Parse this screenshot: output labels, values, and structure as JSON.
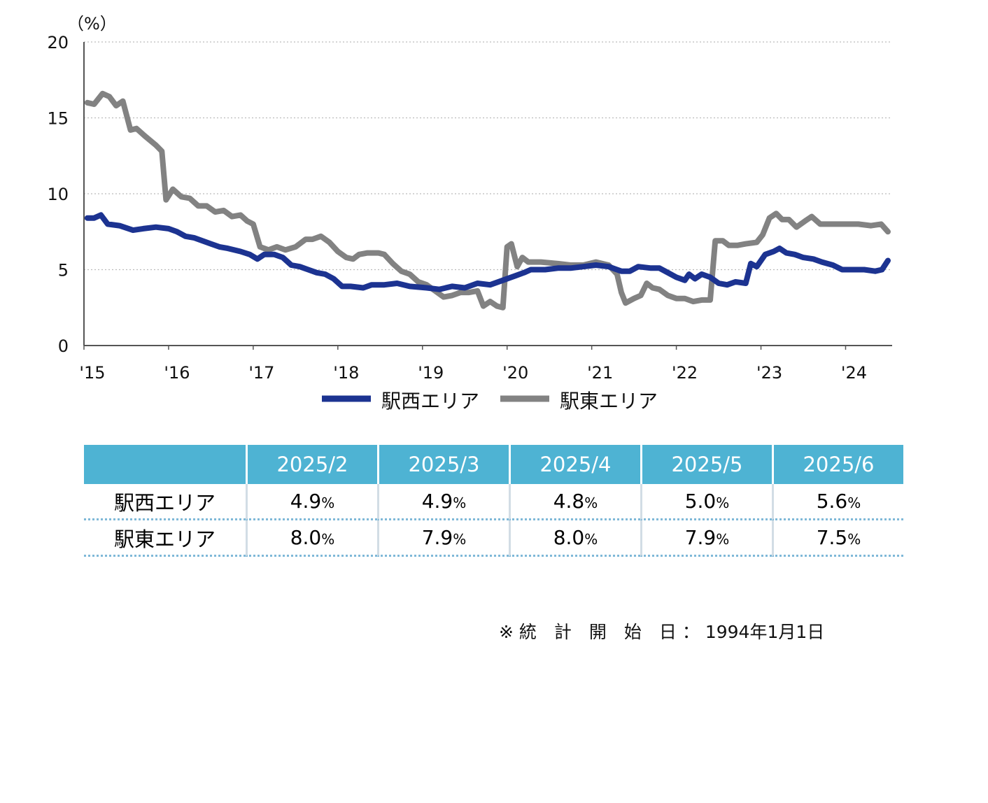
{
  "chart_data": {
    "type": "line",
    "y_unit_label": "（%）",
    "ylim": [
      0,
      20
    ],
    "yticks": [
      0,
      5,
      10,
      15,
      20
    ],
    "xlim": [
      2015.0,
      2024.55
    ],
    "xticks": [
      {
        "value": 2015,
        "label": "'15"
      },
      {
        "value": 2016,
        "label": "'16"
      },
      {
        "value": 2017,
        "label": "'17"
      },
      {
        "value": 2018,
        "label": "'18"
      },
      {
        "value": 2019,
        "label": "'19"
      },
      {
        "value": 2020,
        "label": "'20"
      },
      {
        "value": 2021,
        "label": "'21"
      },
      {
        "value": 2022,
        "label": "'22"
      },
      {
        "value": 2023,
        "label": "'23"
      },
      {
        "value": 2024,
        "label": "'24"
      }
    ],
    "grid": "horizontal dotted",
    "legend_position": "bottom-center",
    "series": [
      {
        "name": "駅西エリア",
        "color": "#1c3391",
        "points": [
          [
            2015.04,
            8.4
          ],
          [
            2015.12,
            8.4
          ],
          [
            2015.2,
            8.6
          ],
          [
            2015.28,
            8.0
          ],
          [
            2015.42,
            7.9
          ],
          [
            2015.58,
            7.6
          ],
          [
            2015.7,
            7.7
          ],
          [
            2015.85,
            7.8
          ],
          [
            2016.0,
            7.7
          ],
          [
            2016.1,
            7.5
          ],
          [
            2016.2,
            7.2
          ],
          [
            2016.3,
            7.1
          ],
          [
            2016.4,
            6.9
          ],
          [
            2016.5,
            6.7
          ],
          [
            2016.6,
            6.5
          ],
          [
            2016.7,
            6.4
          ],
          [
            2016.85,
            6.2
          ],
          [
            2016.96,
            6.0
          ],
          [
            2017.05,
            5.7
          ],
          [
            2017.13,
            6.0
          ],
          [
            2017.25,
            6.0
          ],
          [
            2017.35,
            5.8
          ],
          [
            2017.45,
            5.3
          ],
          [
            2017.55,
            5.2
          ],
          [
            2017.65,
            5.0
          ],
          [
            2017.75,
            4.8
          ],
          [
            2017.85,
            4.7
          ],
          [
            2017.95,
            4.4
          ],
          [
            2018.05,
            3.9
          ],
          [
            2018.15,
            3.9
          ],
          [
            2018.3,
            3.8
          ],
          [
            2018.4,
            4.0
          ],
          [
            2018.55,
            4.0
          ],
          [
            2018.7,
            4.1
          ],
          [
            2018.85,
            3.9
          ],
          [
            2019.05,
            3.8
          ],
          [
            2019.2,
            3.7
          ],
          [
            2019.35,
            3.9
          ],
          [
            2019.5,
            3.8
          ],
          [
            2019.65,
            4.1
          ],
          [
            2019.8,
            4.0
          ],
          [
            2019.95,
            4.3
          ],
          [
            2020.1,
            4.6
          ],
          [
            2020.2,
            4.8
          ],
          [
            2020.28,
            5.0
          ],
          [
            2020.45,
            5.0
          ],
          [
            2020.6,
            5.1
          ],
          [
            2020.75,
            5.1
          ],
          [
            2020.9,
            5.2
          ],
          [
            2021.05,
            5.3
          ],
          [
            2021.2,
            5.2
          ],
          [
            2021.35,
            4.9
          ],
          [
            2021.45,
            4.9
          ],
          [
            2021.55,
            5.2
          ],
          [
            2021.7,
            5.1
          ],
          [
            2021.8,
            5.1
          ],
          [
            2021.9,
            4.8
          ],
          [
            2022.0,
            4.5
          ],
          [
            2022.1,
            4.3
          ],
          [
            2022.15,
            4.7
          ],
          [
            2022.22,
            4.4
          ],
          [
            2022.3,
            4.7
          ],
          [
            2022.4,
            4.5
          ],
          [
            2022.5,
            4.1
          ],
          [
            2022.6,
            4.0
          ],
          [
            2022.7,
            4.2
          ],
          [
            2022.82,
            4.1
          ],
          [
            2022.88,
            5.4
          ],
          [
            2022.95,
            5.2
          ],
          [
            2023.05,
            6.0
          ],
          [
            2023.15,
            6.2
          ],
          [
            2023.22,
            6.4
          ],
          [
            2023.3,
            6.1
          ],
          [
            2023.4,
            6.0
          ],
          [
            2023.5,
            5.8
          ],
          [
            2023.62,
            5.7
          ],
          [
            2023.72,
            5.5
          ],
          [
            2023.85,
            5.3
          ],
          [
            2023.96,
            5.0
          ],
          [
            2024.1,
            5.0
          ],
          [
            2024.22,
            5.0
          ],
          [
            2024.35,
            4.9
          ],
          [
            2024.43,
            5.0
          ],
          [
            2024.5,
            5.6
          ]
        ]
      },
      {
        "name": "駅東エリア",
        "color": "#828282",
        "points": [
          [
            2015.04,
            16.0
          ],
          [
            2015.12,
            15.9
          ],
          [
            2015.22,
            16.6
          ],
          [
            2015.3,
            16.4
          ],
          [
            2015.38,
            15.8
          ],
          [
            2015.46,
            16.1
          ],
          [
            2015.55,
            14.2
          ],
          [
            2015.62,
            14.3
          ],
          [
            2015.72,
            13.8
          ],
          [
            2015.85,
            13.2
          ],
          [
            2015.92,
            12.8
          ],
          [
            2015.97,
            9.6
          ],
          [
            2016.05,
            10.3
          ],
          [
            2016.15,
            9.8
          ],
          [
            2016.25,
            9.7
          ],
          [
            2016.35,
            9.2
          ],
          [
            2016.45,
            9.2
          ],
          [
            2016.55,
            8.8
          ],
          [
            2016.65,
            8.9
          ],
          [
            2016.75,
            8.5
          ],
          [
            2016.85,
            8.6
          ],
          [
            2016.93,
            8.2
          ],
          [
            2017.0,
            8.0
          ],
          [
            2017.08,
            6.5
          ],
          [
            2017.18,
            6.3
          ],
          [
            2017.28,
            6.5
          ],
          [
            2017.38,
            6.3
          ],
          [
            2017.5,
            6.5
          ],
          [
            2017.62,
            7.0
          ],
          [
            2017.7,
            7.0
          ],
          [
            2017.8,
            7.2
          ],
          [
            2017.9,
            6.8
          ],
          [
            2018.0,
            6.2
          ],
          [
            2018.1,
            5.8
          ],
          [
            2018.18,
            5.7
          ],
          [
            2018.25,
            6.0
          ],
          [
            2018.35,
            6.1
          ],
          [
            2018.48,
            6.1
          ],
          [
            2018.55,
            6.0
          ],
          [
            2018.65,
            5.4
          ],
          [
            2018.75,
            4.9
          ],
          [
            2018.85,
            4.7
          ],
          [
            2018.95,
            4.2
          ],
          [
            2019.05,
            4.0
          ],
          [
            2019.15,
            3.6
          ],
          [
            2019.25,
            3.2
          ],
          [
            2019.35,
            3.3
          ],
          [
            2019.45,
            3.5
          ],
          [
            2019.55,
            3.5
          ],
          [
            2019.65,
            3.6
          ],
          [
            2019.72,
            2.6
          ],
          [
            2019.8,
            2.9
          ],
          [
            2019.88,
            2.6
          ],
          [
            2019.95,
            2.5
          ],
          [
            2020.0,
            6.5
          ],
          [
            2020.05,
            6.7
          ],
          [
            2020.12,
            5.2
          ],
          [
            2020.18,
            5.8
          ],
          [
            2020.25,
            5.5
          ],
          [
            2020.4,
            5.5
          ],
          [
            2020.6,
            5.4
          ],
          [
            2020.75,
            5.3
          ],
          [
            2020.9,
            5.3
          ],
          [
            2021.05,
            5.5
          ],
          [
            2021.2,
            5.3
          ],
          [
            2021.3,
            4.7
          ],
          [
            2021.35,
            3.5
          ],
          [
            2021.4,
            2.8
          ],
          [
            2021.5,
            3.1
          ],
          [
            2021.58,
            3.3
          ],
          [
            2021.65,
            4.1
          ],
          [
            2021.72,
            3.8
          ],
          [
            2021.8,
            3.7
          ],
          [
            2021.9,
            3.3
          ],
          [
            2022.0,
            3.1
          ],
          [
            2022.1,
            3.1
          ],
          [
            2022.2,
            2.9
          ],
          [
            2022.3,
            3.0
          ],
          [
            2022.4,
            3.0
          ],
          [
            2022.46,
            6.9
          ],
          [
            2022.55,
            6.9
          ],
          [
            2022.62,
            6.6
          ],
          [
            2022.72,
            6.6
          ],
          [
            2022.82,
            6.7
          ],
          [
            2022.95,
            6.8
          ],
          [
            2023.02,
            7.3
          ],
          [
            2023.1,
            8.4
          ],
          [
            2023.18,
            8.7
          ],
          [
            2023.25,
            8.3
          ],
          [
            2023.33,
            8.3
          ],
          [
            2023.42,
            7.8
          ],
          [
            2023.52,
            8.2
          ],
          [
            2023.6,
            8.5
          ],
          [
            2023.7,
            8.0
          ],
          [
            2023.85,
            8.0
          ],
          [
            2024.0,
            8.0
          ],
          [
            2024.15,
            8.0
          ],
          [
            2024.3,
            7.9
          ],
          [
            2024.42,
            8.0
          ],
          [
            2024.5,
            7.5
          ]
        ]
      }
    ]
  },
  "table": {
    "columns": [
      "2025/2",
      "2025/3",
      "2025/4",
      "2025/5",
      "2025/6"
    ],
    "rows": [
      {
        "label": "駅西エリア",
        "values": [
          "4.9",
          "4.9",
          "4.8",
          "5.0",
          "5.6"
        ],
        "unit": "%"
      },
      {
        "label": "駅東エリア",
        "values": [
          "8.0",
          "7.9",
          "8.0",
          "7.9",
          "7.5"
        ],
        "unit": "%"
      }
    ]
  },
  "footnote": {
    "label": "※ 統　計　開　始　日",
    "separator": "：",
    "value": "1994年1月1日"
  },
  "colors": {
    "table_header": "#4eb3d3",
    "series_west": "#1c3391",
    "series_east": "#828282"
  }
}
